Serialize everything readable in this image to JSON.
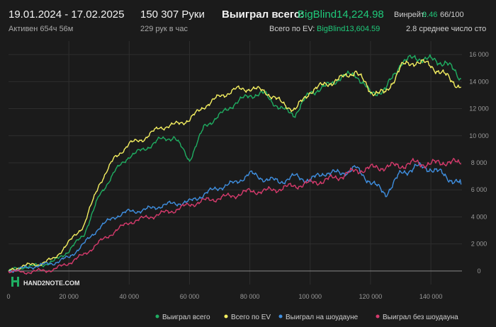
{
  "header": {
    "date_range": "19.01.2024 - 17.02.2025",
    "active_time": "Активен 654ч 56м",
    "hands_count": "150 307 Руки",
    "hands_per_hour": "229 рук в час",
    "won_total_label": "Выиграл всего:",
    "won_total_value": "BigBlind14,224.98",
    "ev_total_label": "Всего по EV:",
    "ev_total_value": "BigBlind13,604.59",
    "winrate_label": "Винрейт:",
    "winrate_value": "9.46",
    "winrate_extra": "66/100",
    "avg_players": "2.8 среднее число сто"
  },
  "brand": {
    "logo_text": "HAND2NOTE.COM"
  },
  "colors": {
    "background": "#1b1b1b",
    "won_total": "#1fae62",
    "ev": "#f5f061",
    "showdown": "#3f8fe0",
    "non_showdown": "#d63a6c",
    "grid": "#2e2e2e"
  },
  "chart_data": {
    "type": "line",
    "xlim": [
      0,
      150307
    ],
    "ylim": [
      -1000,
      17000
    ],
    "x_ticks": [
      "0",
      "20 000",
      "40 000",
      "60 000",
      "80 000",
      "100 000",
      "120 000",
      "140 000"
    ],
    "x_tick_values": [
      0,
      20000,
      40000,
      60000,
      80000,
      100000,
      120000,
      140000
    ],
    "y_ticks": [
      "0",
      "2 000",
      "4 000",
      "6 000",
      "8 000",
      "10 000",
      "12 000",
      "14 000",
      "16 000"
    ],
    "y_tick_values": [
      0,
      2000,
      4000,
      6000,
      8000,
      10000,
      12000,
      14000,
      16000
    ],
    "grid": true,
    "legend_position": "bottom",
    "x": [
      0,
      5000,
      10000,
      15000,
      20000,
      25000,
      30000,
      35000,
      40000,
      45000,
      50000,
      55000,
      60000,
      65000,
      70000,
      75000,
      80000,
      85000,
      90000,
      95000,
      100000,
      105000,
      110000,
      115000,
      120000,
      125000,
      130000,
      135000,
      140000,
      145000,
      150000
    ],
    "series": [
      {
        "name": "Выиграл всего",
        "color_key": "won_total",
        "values": [
          0,
          300,
          400,
          700,
          1500,
          2700,
          5500,
          7300,
          8500,
          9000,
          9700,
          9900,
          8200,
          10700,
          11500,
          12400,
          13000,
          13100,
          12000,
          11600,
          13200,
          13600,
          14300,
          14600,
          13100,
          13400,
          15400,
          15800,
          15600,
          15400,
          14200
        ]
      },
      {
        "name": "Всего по EV",
        "color_key": "ev",
        "values": [
          0,
          400,
          500,
          900,
          2100,
          3400,
          6400,
          8300,
          9400,
          9800,
          10600,
          10800,
          11200,
          12200,
          12900,
          13400,
          13500,
          13300,
          12500,
          11900,
          13300,
          13800,
          14200,
          14800,
          13300,
          13100,
          15100,
          15500,
          15200,
          14400,
          13600
        ]
      },
      {
        "name": "Выиграл на шоудауне",
        "color_key": "showdown",
        "values": [
          0,
          200,
          400,
          600,
          1000,
          2000,
          3200,
          4000,
          4400,
          4500,
          4800,
          5000,
          5100,
          5700,
          6200,
          6500,
          7200,
          6800,
          6600,
          7000,
          6700,
          7300,
          7200,
          7600,
          6600,
          5700,
          7200,
          7700,
          7600,
          7000,
          6400
        ]
      },
      {
        "name": "Выиграл без шоудауна",
        "color_key": "non_showdown",
        "values": [
          0,
          -100,
          0,
          100,
          600,
          1200,
          2100,
          2900,
          3600,
          3900,
          4200,
          4500,
          4900,
          5200,
          5400,
          5600,
          5900,
          5900,
          6100,
          6300,
          6500,
          6700,
          7000,
          7400,
          7600,
          7700,
          7800,
          8000,
          7900,
          8100,
          7900
        ]
      }
    ]
  }
}
